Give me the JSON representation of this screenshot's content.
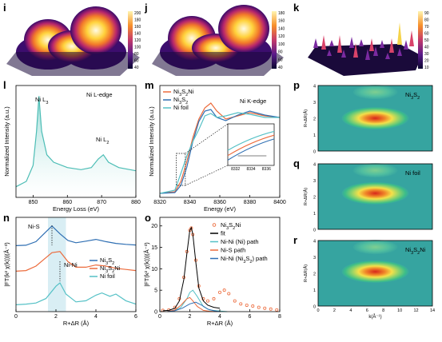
{
  "panels": {
    "i": "i",
    "j": "j",
    "k": "k",
    "l": "l",
    "m": "m",
    "n": "n",
    "o": "o",
    "p": "p",
    "q": "q",
    "r": "r"
  },
  "colorbars": {
    "i": [
      "200",
      "180",
      "160",
      "140",
      "120",
      "100",
      "80",
      "60",
      "40"
    ],
    "j": [
      "180",
      "160",
      "140",
      "120",
      "100",
      "80",
      "60",
      "40"
    ],
    "k": [
      "90",
      "80",
      "70",
      "60",
      "50",
      "40",
      "30",
      "20",
      "10"
    ]
  },
  "chart_data": [
    {
      "id": "l",
      "type": "area",
      "title": "Ni L-edge",
      "xlabel": "Energy Loss (eV)",
      "ylabel": "Normalized Intensity (a.u.)",
      "xlim": [
        845,
        880
      ],
      "xticks": [
        "850",
        "860",
        "870",
        "880"
      ],
      "annotations": [
        "Ni L3",
        "Ni L2"
      ],
      "series": [
        {
          "x": [
            845,
            848,
            850,
            851,
            851.7,
            852.5,
            854,
            856,
            860,
            864,
            867,
            869,
            870.5,
            872,
            875,
            880
          ],
          "y": [
            0.1,
            0.15,
            0.3,
            0.62,
            0.95,
            0.62,
            0.4,
            0.33,
            0.28,
            0.26,
            0.28,
            0.36,
            0.4,
            0.33,
            0.28,
            0.25
          ],
          "color": "#4cbdb5"
        }
      ]
    },
    {
      "id": "m",
      "type": "line",
      "title": "Ni K-edge",
      "xlabel": "Energy (eV)",
      "ylabel": "Normalized Intensity (a.u.)",
      "xlim": [
        8320,
        8400
      ],
      "xticks": [
        "8320",
        "8340",
        "8360",
        "8380",
        "8400"
      ],
      "inset_xticks": [
        "8332",
        "8334",
        "8336"
      ],
      "legend": [
        "Ni3S2/Ni",
        "Ni3S2",
        "Ni foil"
      ],
      "series": [
        {
          "name": "Ni3S2/Ni",
          "color": "#ec6b3c",
          "x": [
            8320,
            8330,
            8334,
            8338,
            8342,
            8346,
            8350,
            8354,
            8358,
            8364,
            8372,
            8380,
            8390,
            8400
          ],
          "y": [
            0.05,
            0.07,
            0.2,
            0.45,
            0.75,
            0.98,
            1.12,
            1.18,
            1.08,
            0.98,
            1.02,
            1.06,
            1.02,
            1.0
          ]
        },
        {
          "name": "Ni3S2",
          "color": "#2f6fb3",
          "x": [
            8320,
            8330,
            8334,
            8338,
            8342,
            8346,
            8350,
            8354,
            8358,
            8364,
            8372,
            8380,
            8390,
            8400
          ],
          "y": [
            0.05,
            0.06,
            0.15,
            0.38,
            0.7,
            0.95,
            1.08,
            1.1,
            1.0,
            0.96,
            1.03,
            1.08,
            1.03,
            1.0
          ]
        },
        {
          "name": "Ni foil",
          "color": "#55c1c6",
          "x": [
            8320,
            8330,
            8334,
            8338,
            8342,
            8346,
            8350,
            8354,
            8358,
            8364,
            8372,
            8380,
            8390,
            8400
          ],
          "y": [
            0.05,
            0.09,
            0.3,
            0.52,
            0.7,
            0.85,
            1.02,
            1.05,
            1.0,
            1.02,
            1.06,
            1.04,
            1.0,
            1.0
          ]
        }
      ]
    },
    {
      "id": "n",
      "type": "line",
      "xlabel": "R+ΔR (Å)",
      "ylabel": "|FT(k² χ(k))|(Å⁻³)",
      "xlim": [
        0,
        6
      ],
      "xticks": [
        "0",
        "2",
        "4",
        "6"
      ],
      "annotations": [
        "Ni-S",
        "Ni-Ni"
      ],
      "legend": [
        "Ni3S2",
        "Ni3S2/Ni",
        "Ni foil"
      ],
      "series": [
        {
          "name": "Ni3S2",
          "color": "#2f6fb3",
          "x": [
            0,
            0.5,
            1,
            1.4,
            1.8,
            2.2,
            2.6,
            3,
            3.5,
            4,
            4.5,
            5,
            5.5,
            6
          ],
          "y": [
            0.02,
            0.04,
            0.2,
            0.55,
            0.9,
            0.55,
            0.25,
            0.15,
            0.22,
            0.3,
            0.2,
            0.12,
            0.08,
            0.05
          ]
        },
        {
          "name": "Ni3S2/Ni",
          "color": "#ec6b3c",
          "x": [
            0,
            0.5,
            1,
            1.4,
            1.8,
            2.2,
            2.6,
            3,
            3.5,
            4,
            4.5,
            5,
            5.5,
            6
          ],
          "y": [
            0.02,
            0.05,
            0.25,
            0.55,
            0.85,
            0.9,
            0.45,
            0.2,
            0.2,
            0.3,
            0.25,
            0.15,
            0.1,
            0.05
          ]
        },
        {
          "name": "Ni foil",
          "color": "#55c1c6",
          "x": [
            0,
            0.5,
            1,
            1.5,
            2,
            2.2,
            2.5,
            3,
            3.5,
            4,
            4.3,
            4.7,
            5,
            5.5,
            6
          ],
          "y": [
            0.02,
            0.05,
            0.1,
            0.3,
            0.85,
            1.0,
            0.5,
            0.15,
            0.2,
            0.45,
            0.55,
            0.4,
            0.5,
            0.2,
            0.05
          ]
        }
      ]
    },
    {
      "id": "o",
      "type": "line",
      "xlabel": "R+ΔR (Å)",
      "ylabel": "|FT(k² χ(k))|(Å⁻³)",
      "xlim": [
        0,
        8
      ],
      "ylim": [
        0,
        22
      ],
      "xticks": [
        "0",
        "2",
        "4",
        "6",
        "8"
      ],
      "yticks": [
        "0",
        "5",
        "10",
        "15",
        "20"
      ],
      "legend": [
        "Ni3S2/Ni",
        "fit",
        "Ni-Ni (Ni) path",
        "Ni-S path",
        "Ni-Ni (Ni3S2) path"
      ],
      "series": [
        {
          "name": "Ni3S2/Ni",
          "color": "#ec6b3c",
          "x": [
            0.2,
            0.6,
            1,
            1.3,
            1.6,
            1.8,
            2,
            2.1,
            2.2,
            2.4,
            2.6,
            2.9,
            3.2,
            3.6,
            4,
            4.3,
            4.6,
            5,
            5.4,
            5.8,
            6.2,
            6.6,
            7,
            7.4,
            7.8
          ],
          "y": [
            0.3,
            0.4,
            1,
            3,
            8,
            14,
            19,
            19.5,
            18,
            12,
            6,
            3,
            2.5,
            3,
            4.5,
            5,
            4.2,
            2.5,
            1.8,
            1.5,
            1.3,
            1,
            0.8,
            0.6,
            0.4
          ]
        },
        {
          "name": "fit",
          "color": "#000000",
          "x": [
            0.2,
            0.6,
            1,
            1.3,
            1.6,
            1.8,
            2,
            2.1,
            2.2,
            2.4,
            2.6,
            2.9,
            3.2,
            3.6,
            4
          ],
          "y": [
            0.2,
            0.3,
            0.8,
            2.5,
            7.5,
            13.5,
            19,
            19.6,
            18,
            11.5,
            5.5,
            2.5,
            1.5,
            1,
            0.8
          ]
        },
        {
          "name": "Ni-Ni (Ni) path",
          "color": "#55c1c6",
          "x": [
            0.5,
            1,
            1.4,
            1.8,
            2.0,
            2.2,
            2.5,
            2.9,
            3.3,
            3.8,
            4.5
          ],
          "y": [
            0,
            0.3,
            1,
            3,
            4.5,
            5,
            3.5,
            1.2,
            0.4,
            0.2,
            0
          ]
        },
        {
          "name": "Ni-S path",
          "color": "#ec6b3c",
          "x": [
            0.5,
            1,
            1.4,
            1.8,
            2.0,
            2.2,
            2.5,
            2.9,
            3.3,
            3.8
          ],
          "y": [
            0,
            0.4,
            1.5,
            3,
            3.3,
            2.5,
            1.2,
            0.3,
            0.1,
            0
          ]
        },
        {
          "name": "Ni-Ni (Ni3S2) path",
          "color": "#2f6fb3",
          "x": [
            0.5,
            1,
            1.5,
            2,
            2.4,
            2.8,
            3.2,
            3.6,
            4
          ],
          "y": [
            0,
            0.2,
            0.8,
            1.8,
            2.2,
            1.5,
            0.6,
            0.2,
            0
          ]
        }
      ]
    },
    {
      "id": "p",
      "type": "heatmap",
      "label": "Ni3S2",
      "ylabel": "R+ΔR(Å)",
      "yticks": [
        "0",
        "1",
        "2",
        "3",
        "4"
      ],
      "peak": {
        "k": 7,
        "r": 2.0,
        "intensity": 0.9
      }
    },
    {
      "id": "q",
      "type": "heatmap",
      "label": "Ni foil",
      "ylabel": "R+ΔR(Å)",
      "yticks": [
        "0",
        "1",
        "2",
        "3",
        "4"
      ],
      "peak": {
        "k": 7,
        "r": 2.2,
        "intensity": 1.0
      }
    },
    {
      "id": "r",
      "type": "heatmap",
      "label": "Ni3S2/Ni",
      "xlabel": "k(Å⁻¹)",
      "ylabel": "R+ΔR(Å)",
      "xticks": [
        "0",
        "2",
        "4",
        "6",
        "8",
        "10",
        "12",
        "14"
      ],
      "yticks": [
        "0",
        "1",
        "2",
        "3",
        "4"
      ],
      "peak": {
        "k": 7,
        "r": 2.1,
        "intensity": 0.9
      }
    }
  ]
}
